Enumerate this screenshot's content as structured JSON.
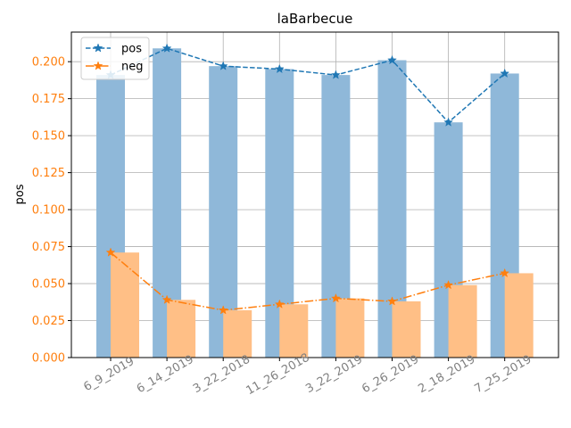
{
  "chart_data": {
    "type": "bar",
    "title": "laBarbecue",
    "xlabel": "",
    "ylabel": "pos",
    "categories": [
      "6_9_2019",
      "6_14_2019",
      "3_22_2018",
      "11_26_2018",
      "3_22_2019",
      "6_26_2019",
      "2_18_2019",
      "7_25_2019"
    ],
    "ylim": [
      0,
      0.22
    ],
    "yticks": [
      "0.000",
      "0.025",
      "0.050",
      "0.075",
      "0.100",
      "0.125",
      "0.150",
      "0.175",
      "0.200"
    ],
    "grid": true,
    "legend_position": "top-left",
    "series": [
      {
        "name": "pos",
        "values": [
          0.191,
          0.209,
          0.197,
          0.195,
          0.191,
          0.201,
          0.159,
          0.192
        ],
        "bar_color": "#8fb8d9",
        "line_color": "#1f77b4",
        "line_style": "dashed",
        "marker": "star"
      },
      {
        "name": "neg",
        "values": [
          0.071,
          0.039,
          0.032,
          0.036,
          0.04,
          0.038,
          0.049,
          0.057
        ],
        "bar_color": "#ffbf86",
        "line_color": "#ff7f0e",
        "line_style": "dashdot",
        "marker": "star"
      }
    ]
  }
}
